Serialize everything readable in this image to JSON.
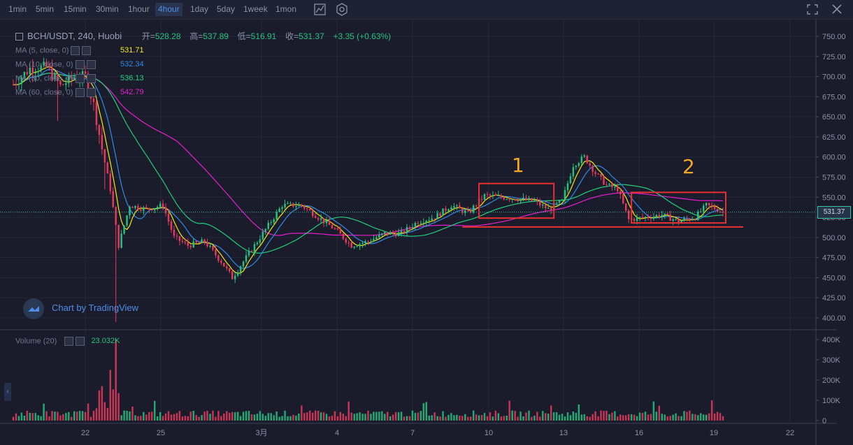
{
  "toolbar": {
    "timeframes": [
      "1min",
      "5min",
      "15min",
      "30min",
      "1hour",
      "4hour",
      "1day",
      "5day",
      "1week",
      "1mon"
    ],
    "active": "4hour",
    "icons": [
      "indicator-icon",
      "settings-icon",
      "fullscreen-icon",
      "close-icon"
    ]
  },
  "legend": {
    "symbol": "BCH/USDT, 240, Huobi",
    "open_label": "开=",
    "open": "528.28",
    "high_label": "高=",
    "high": "537.89",
    "low_label": "低=",
    "low": "516.91",
    "close_label": "收=",
    "close": "531.37",
    "change": "+3.35 (+0.63%)"
  },
  "ma": [
    {
      "label": "MA (5, close, 0)",
      "value": "531.71",
      "color": "#f5e90f"
    },
    {
      "label": "MA (10, close, 0)",
      "value": "532.34",
      "color": "#2e8be6"
    },
    {
      "label": "MA (30, close, 0)",
      "value": "536.13",
      "color": "#21d07a"
    },
    {
      "label": "MA (60, close, 0)",
      "value": "542.79",
      "color": "#e91ed0"
    }
  ],
  "volume": {
    "label": "Volume (20)",
    "value": "23.032K"
  },
  "watermark": "Chart by TradingView",
  "annotations": [
    "1",
    "2"
  ],
  "colors": {
    "up": "#26c281",
    "down": "#e8395d",
    "annotation_box": "#e83030",
    "annotation_text": "#f5a623"
  },
  "chart_data": {
    "type": "candlestick",
    "symbol": "BCH/USDT",
    "y_axis": {
      "ticks": [
        "750.00",
        "725.00",
        "700.00",
        "675.00",
        "650.00",
        "625.00",
        "600.00",
        "575.00",
        "550.00",
        "525.00",
        "500.00",
        "475.00",
        "450.00",
        "425.00",
        "400.00"
      ],
      "range": [
        390,
        760
      ]
    },
    "volume_axis": {
      "ticks": [
        "400K",
        "300K",
        "200K",
        "100K",
        "0"
      ],
      "range": [
        0,
        420000
      ]
    },
    "x_axis": {
      "ticks": [
        "22",
        "25",
        "3月",
        "4",
        "7",
        "10",
        "13",
        "16",
        "19",
        "22"
      ]
    },
    "last_price": "531.37",
    "ma_series_names": [
      "MA 5",
      "MA 10",
      "MA 30",
      "MA 60"
    ],
    "anchors": [
      {
        "i": 0,
        "p": 690
      },
      {
        "i": 6,
        "p": 710
      },
      {
        "i": 12,
        "p": 712
      },
      {
        "i": 17,
        "p": 688
      },
      {
        "i": 22,
        "p": 700
      },
      {
        "i": 26,
        "p": 700
      },
      {
        "i": 29,
        "p": 665
      },
      {
        "i": 32,
        "p": 610
      },
      {
        "i": 35,
        "p": 560
      },
      {
        "i": 38,
        "p": 490
      },
      {
        "i": 42,
        "p": 540
      },
      {
        "i": 48,
        "p": 535
      },
      {
        "i": 54,
        "p": 540
      },
      {
        "i": 58,
        "p": 500
      },
      {
        "i": 63,
        "p": 490
      },
      {
        "i": 69,
        "p": 495
      },
      {
        "i": 75,
        "p": 470
      },
      {
        "i": 79,
        "p": 450
      },
      {
        "i": 84,
        "p": 475
      },
      {
        "i": 90,
        "p": 505
      },
      {
        "i": 97,
        "p": 540
      },
      {
        "i": 104,
        "p": 540
      },
      {
        "i": 110,
        "p": 525
      },
      {
        "i": 116,
        "p": 510
      },
      {
        "i": 122,
        "p": 490
      },
      {
        "i": 128,
        "p": 495
      },
      {
        "i": 134,
        "p": 505
      },
      {
        "i": 140,
        "p": 505
      },
      {
        "i": 146,
        "p": 520
      },
      {
        "i": 152,
        "p": 525
      },
      {
        "i": 158,
        "p": 540
      },
      {
        "i": 164,
        "p": 530
      },
      {
        "i": 170,
        "p": 552
      },
      {
        "i": 176,
        "p": 550
      },
      {
        "i": 182,
        "p": 548
      },
      {
        "i": 188,
        "p": 545
      },
      {
        "i": 193,
        "p": 535
      },
      {
        "i": 198,
        "p": 545
      },
      {
        "i": 202,
        "p": 590
      },
      {
        "i": 206,
        "p": 600
      },
      {
        "i": 210,
        "p": 580
      },
      {
        "i": 214,
        "p": 565
      },
      {
        "i": 218,
        "p": 560
      },
      {
        "i": 222,
        "p": 522
      },
      {
        "i": 228,
        "p": 525
      },
      {
        "i": 234,
        "p": 528
      },
      {
        "i": 240,
        "p": 520
      },
      {
        "i": 246,
        "p": 525
      },
      {
        "i": 250,
        "p": 540
      },
      {
        "i": 254,
        "p": 535
      },
      {
        "i": 256,
        "p": 531
      }
    ],
    "candle_count": 257,
    "boxes": [
      {
        "label": "1",
        "from_index": 169,
        "to_index": 194,
        "price_top": 567,
        "price_bottom": 524
      },
      {
        "label": "2",
        "from_index": 224,
        "to_index": 256,
        "price_top": 556,
        "price_bottom": 518
      }
    ],
    "support_line_price": 513
  }
}
